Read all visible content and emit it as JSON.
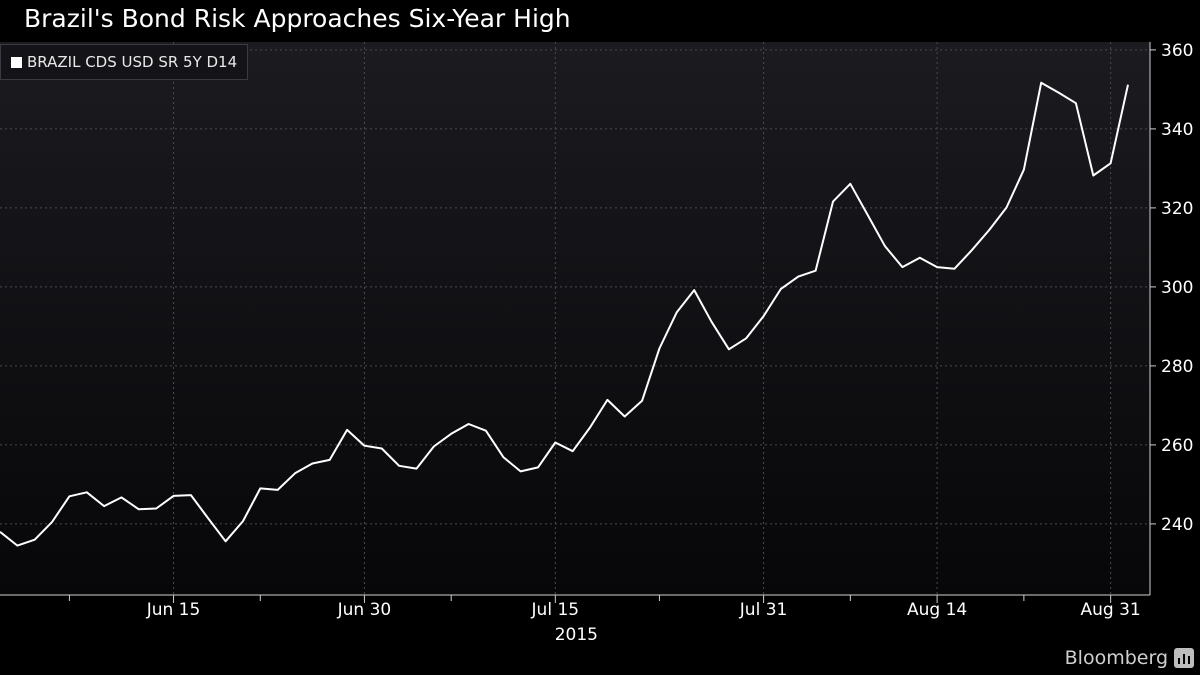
{
  "chart_data": {
    "type": "line",
    "title": "Brazil's Bond Risk Approaches Six-Year High",
    "series": [
      {
        "name": "BRAZIL CDS USD SR 5Y D14",
        "color": "#ffffff",
        "points": [
          [
            "2015-06-05",
            238
          ],
          [
            "2015-06-06",
            234.5
          ],
          [
            "2015-06-07",
            236
          ],
          [
            "2015-06-08",
            240.5
          ],
          [
            "2015-06-09",
            247
          ],
          [
            "2015-06-10",
            248
          ],
          [
            "2015-06-11",
            244.5
          ],
          [
            "2015-06-12",
            246.7
          ],
          [
            "2015-06-13",
            243.7
          ],
          [
            "2015-06-14",
            243.9
          ],
          [
            "2015-06-15",
            247.1
          ],
          [
            "2015-06-16",
            247.3
          ],
          [
            "2015-06-17",
            241.4
          ],
          [
            "2015-06-18",
            235.6
          ],
          [
            "2015-06-19",
            240.7
          ],
          [
            "2015-06-20",
            249
          ],
          [
            "2015-06-21",
            248.6
          ],
          [
            "2015-06-22",
            252.8
          ],
          [
            "2015-06-23",
            255.3
          ],
          [
            "2015-06-24",
            256.2
          ],
          [
            "2015-06-25",
            263.8
          ],
          [
            "2015-06-26",
            259.8
          ],
          [
            "2015-06-27",
            259.1
          ],
          [
            "2015-06-28",
            254.7
          ],
          [
            "2015-06-29",
            254
          ],
          [
            "2015-06-30",
            259.6
          ],
          [
            "2015-07-01",
            262.8
          ],
          [
            "2015-07-02",
            265.3
          ],
          [
            "2015-07-03",
            263.6
          ],
          [
            "2015-07-04",
            256.9
          ],
          [
            "2015-07-05",
            253.3
          ],
          [
            "2015-07-06",
            254.3
          ],
          [
            "2015-07-07",
            260.6
          ],
          [
            "2015-07-08",
            258.4
          ],
          [
            "2015-07-09",
            264.4
          ],
          [
            "2015-07-10",
            271.4
          ],
          [
            "2015-07-11",
            267.2
          ],
          [
            "2015-07-12",
            271.2
          ],
          [
            "2015-07-13",
            284.4
          ],
          [
            "2015-07-14",
            293.6
          ],
          [
            "2015-07-15",
            299.2
          ],
          [
            "2015-07-16",
            291.2
          ],
          [
            "2015-07-17",
            284.2
          ],
          [
            "2015-07-18",
            287
          ],
          [
            "2015-07-19",
            292.6
          ],
          [
            "2015-07-20",
            299.5
          ],
          [
            "2015-07-21",
            302.6
          ],
          [
            "2015-07-22",
            304.1
          ],
          [
            "2015-07-23",
            321.6
          ],
          [
            "2015-07-24",
            326.1
          ],
          [
            "2015-07-25",
            318.2
          ],
          [
            "2015-07-26",
            310.3
          ],
          [
            "2015-07-27",
            305
          ],
          [
            "2015-07-28",
            307.4
          ],
          [
            "2015-07-29",
            305
          ],
          [
            "2015-07-30",
            304.6
          ],
          [
            "2015-07-31",
            309.3
          ],
          [
            "2015-08-01",
            314.4
          ],
          [
            "2015-08-02",
            320.1
          ],
          [
            "2015-08-03",
            329.7
          ],
          [
            "2015-08-04",
            351.7
          ],
          [
            "2015-08-05",
            349.2
          ],
          [
            "2015-08-06",
            346.5
          ],
          [
            "2015-08-07",
            328.2
          ],
          [
            "2015-08-08",
            331.3
          ],
          [
            "2015-08-09",
            351.2
          ]
        ]
      }
    ],
    "x_ticks": [
      {
        "label": "Jun 15",
        "pos": "2015-06-15"
      },
      {
        "label": "Jun 30",
        "pos": "2015-06-26"
      },
      {
        "label": "Jul 15",
        "pos": "2015-07-07"
      },
      {
        "label": "Jul 31",
        "pos": "2015-07-19"
      },
      {
        "label": "Aug 14",
        "pos": "2015-07-29"
      },
      {
        "label": "Aug 31",
        "pos": "2015-08-08"
      }
    ],
    "x_minor_ticks": [
      "2015-06-09",
      "2015-06-20",
      "2015-07-01",
      "2015-07-13",
      "2015-07-24",
      "2015-08-03"
    ],
    "x_sublabel": "2015",
    "y_ticks": [
      240,
      260,
      280,
      300,
      320,
      340,
      360
    ],
    "ylim": [
      222,
      362
    ],
    "y_axis_side": "right",
    "grid": true,
    "legend": {
      "placement": "top-left",
      "label": "BRAZIL CDS USD SR 5Y D14"
    }
  },
  "brand": {
    "name": "Bloomberg"
  },
  "colors": {
    "background": "#000000",
    "plot_background": "#121216",
    "line": "#ffffff",
    "grid": "#4a4a4f"
  }
}
